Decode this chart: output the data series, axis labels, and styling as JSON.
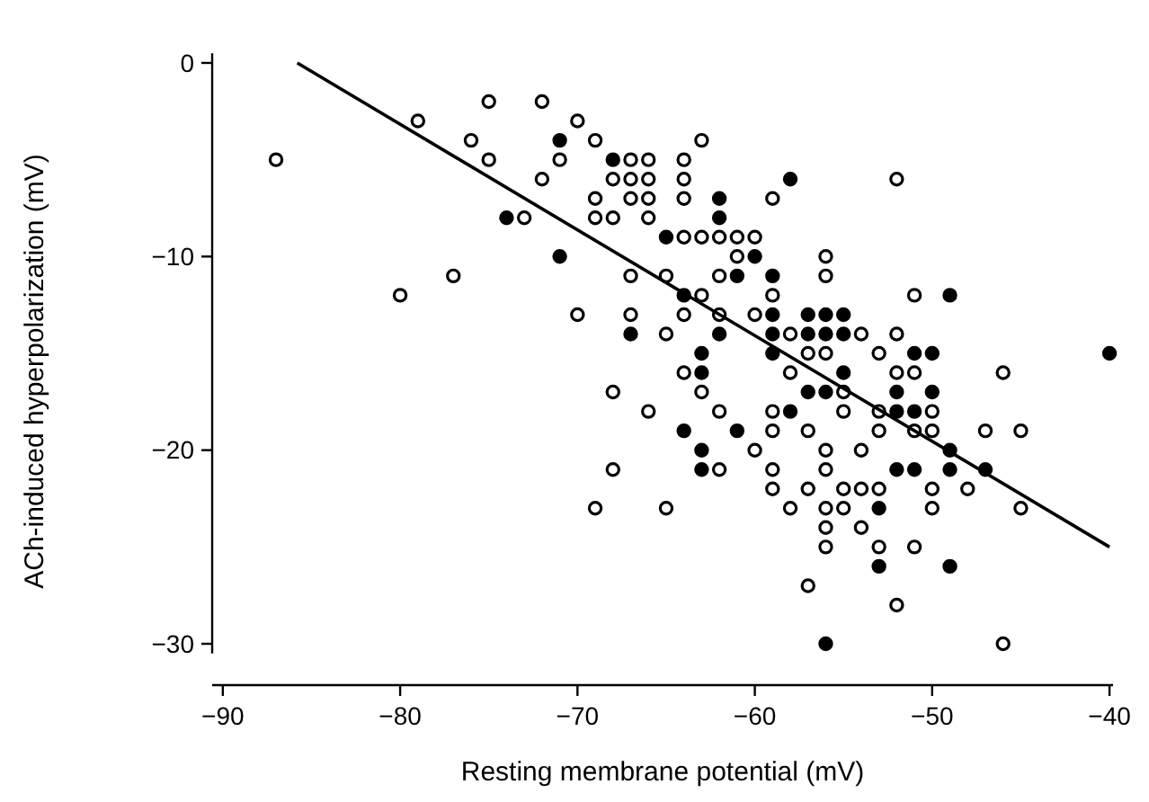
{
  "chart_data": {
    "type": "scatter",
    "xlabel": "Resting membrane potential (mV)",
    "ylabel": "ACh-induced hyperpolarization (mV)",
    "xlim": [
      -90.6,
      -39.8
    ],
    "ylim": [
      -30.5,
      0.5
    ],
    "xticks": [
      -90,
      -80,
      -70,
      -60,
      -50,
      -40
    ],
    "yticks": [
      -30,
      -20,
      -10,
      0
    ],
    "series": [
      {
        "marker": "circle",
        "color": "#ffffff",
        "x": [
          -87,
          -79,
          -75,
          -72,
          -76,
          -75,
          -72,
          -73,
          -77,
          -80,
          -71,
          -70,
          -69,
          -63,
          -67,
          -66,
          -64,
          -68,
          -67,
          -66,
          -64,
          -69,
          -67,
          -66,
          -64,
          -59,
          -69,
          -68,
          -66,
          -64,
          -63,
          -62,
          -61,
          -60,
          -61,
          -56,
          -67,
          -65,
          -62,
          -56,
          -63,
          -59,
          -70,
          -67,
          -64,
          -62,
          -60,
          -65,
          -58,
          -54,
          -57,
          -56,
          -52,
          -51,
          -52,
          -53,
          -64,
          -58,
          -68,
          -63,
          -55,
          -66,
          -62,
          -59,
          -55,
          -59,
          -57,
          -60,
          -56,
          -54,
          -68,
          -62,
          -59,
          -56,
          -59,
          -57,
          -55,
          -54,
          -69,
          -65,
          -58,
          -56,
          -55,
          -56,
          -54,
          -56,
          -57,
          -52,
          -51,
          -46,
          -53,
          -50,
          -53,
          -51,
          -50,
          -47,
          -45,
          -53,
          -50,
          -48,
          -50,
          -45,
          -53,
          -51,
          -52,
          -46
        ],
        "values": [
          -5,
          -3,
          -2,
          -2,
          -4,
          -5,
          -6,
          -8,
          -11,
          -12,
          -5,
          -3,
          -4,
          -4,
          -5,
          -5,
          -5,
          -6,
          -6,
          -6,
          -6,
          -7,
          -7,
          -7,
          -7,
          -7,
          -8,
          -8,
          -8,
          -9,
          -9,
          -9,
          -9,
          -9,
          -10,
          -10,
          -11,
          -11,
          -11,
          -11,
          -12,
          -12,
          -13,
          -13,
          -13,
          -13,
          -13,
          -14,
          -14,
          -14,
          -15,
          -15,
          -6,
          -12,
          -14,
          -15,
          -16,
          -16,
          -17,
          -17,
          -17,
          -18,
          -18,
          -18,
          -18,
          -19,
          -19,
          -20,
          -20,
          -20,
          -21,
          -21,
          -21,
          -21,
          -22,
          -22,
          -22,
          -22,
          -23,
          -23,
          -23,
          -23,
          -23,
          -24,
          -24,
          -25,
          -27,
          -16,
          -16,
          -16,
          -18,
          -18,
          -19,
          -19,
          -19,
          -19,
          -19,
          -22,
          -22,
          -22,
          -23,
          -23,
          -25,
          -25,
          -28,
          -30
        ]
      },
      {
        "marker": "circle",
        "color": "#000000",
        "x": [
          -74,
          -71,
          -71,
          -68,
          -58,
          -62,
          -62,
          -65,
          -60,
          -61,
          -59,
          -64,
          -59,
          -57,
          -56,
          -55,
          -67,
          -62,
          -59,
          -57,
          -56,
          -55,
          -63,
          -59,
          -49,
          -51,
          -50,
          -40,
          -63,
          -55,
          -57,
          -56,
          -58,
          -64,
          -61,
          -63,
          -63,
          -56,
          -52,
          -50,
          -52,
          -51,
          -49,
          -52,
          -51,
          -49,
          -47,
          -53,
          -53,
          -49
        ],
        "values": [
          -8,
          -10,
          -4,
          -5,
          -6,
          -7,
          -8,
          -9,
          -10,
          -11,
          -11,
          -12,
          -13,
          -13,
          -13,
          -13,
          -14,
          -14,
          -14,
          -14,
          -14,
          -14,
          -15,
          -15,
          -12,
          -15,
          -15,
          -15,
          -16,
          -16,
          -17,
          -17,
          -18,
          -19,
          -19,
          -20,
          -21,
          -30,
          -17,
          -17,
          -18,
          -18,
          -20,
          -21,
          -21,
          -21,
          -21,
          -23,
          -26,
          -26
        ]
      },
      {
        "type": "line",
        "color": "#000000",
        "x": [
          -85.8,
          -40
        ],
        "values": [
          0,
          -25
        ]
      }
    ]
  }
}
